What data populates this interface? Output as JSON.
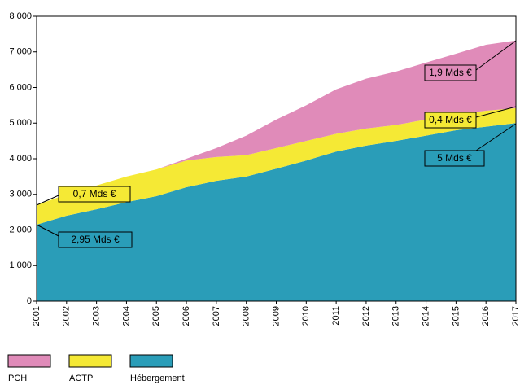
{
  "chart_data": {
    "type": "stacked_area",
    "categories": [
      "2001",
      "2002",
      "2003",
      "2004",
      "2005",
      "2006",
      "2007",
      "2008",
      "2009",
      "2010",
      "2011",
      "2012",
      "2013",
      "2014",
      "2015",
      "2016",
      "2017"
    ],
    "series": [
      {
        "name": "Hébergement",
        "color": "#2a9db8",
        "values": [
          2150,
          2400,
          2580,
          2780,
          2950,
          3200,
          3380,
          3500,
          3720,
          3950,
          4200,
          4370,
          4500,
          4650,
          4800,
          4900,
          5000
        ]
      },
      {
        "name": "ACTP",
        "color": "#f5e935",
        "values": [
          550,
          600,
          670,
          720,
          750,
          750,
          670,
          600,
          580,
          550,
          500,
          480,
          450,
          450,
          450,
          450,
          420
        ]
      },
      {
        "name": "PCH",
        "color": "#e08bb9",
        "values": [
          0,
          0,
          0,
          0,
          0,
          50,
          250,
          550,
          800,
          1000,
          1250,
          1400,
          1500,
          1600,
          1700,
          1850,
          1900
        ]
      }
    ],
    "ylim": [
      0,
      8000
    ],
    "yticks": [
      0,
      {
        "value": 1000,
        "label": "1 000"
      },
      {
        "value": 2000,
        "label": "2 000"
      },
      {
        "value": 3000,
        "label": "3 000"
      },
      {
        "value": 4000,
        "label": "4 000"
      },
      {
        "value": 5000,
        "label": "5 000"
      },
      {
        "value": 6000,
        "label": "6 000"
      },
      {
        "value": 7000,
        "label": "7 000"
      },
      {
        "value": 8000,
        "label": "8 000"
      }
    ],
    "annotations": [
      "1,9 Mds €",
      "0,4 Mds €",
      "5 Mds €",
      "0,7 Mds €",
      "2,95 Mds €"
    ]
  }
}
